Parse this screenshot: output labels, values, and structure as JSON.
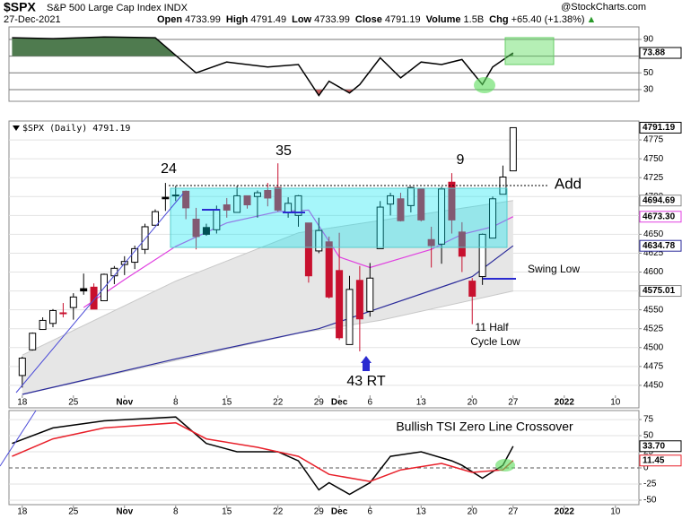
{
  "header": {
    "symbol": "$SPX",
    "name": "S&P 500 Large Cap Index INDX",
    "date": "27-Dec-2021",
    "source": "@StockCharts.com",
    "quote": [
      {
        "label": "Open",
        "value": "4733.99"
      },
      {
        "label": "High",
        "value": "4791.49"
      },
      {
        "label": "Low",
        "value": "4733.99"
      },
      {
        "label": "Close",
        "value": "4791.19"
      },
      {
        "label": "Volume",
        "value": "1.5B"
      },
      {
        "label": "Chg",
        "value": "+65.40 (+1.38%)"
      }
    ]
  },
  "chart_data": [
    {
      "type": "line",
      "xlim": [
        -1.3,
        60.3
      ],
      "ylim": [
        16,
        105
      ],
      "yticks": [
        30,
        50,
        70,
        90
      ],
      "grid": true,
      "fill_above": {
        "level": 70,
        "color": "#4f7b4f"
      },
      "fill_below": {
        "level": 30,
        "color": "#c46060"
      },
      "series": [
        {
          "color": "#000000",
          "x": [
            -1,
            3,
            8,
            13,
            17,
            20,
            24,
            27,
            29,
            30,
            32,
            33,
            35,
            37,
            39,
            41,
            43,
            45,
            46,
            48
          ],
          "values": [
            92,
            91,
            93,
            92,
            50,
            63,
            57,
            60,
            23,
            40,
            26,
            36,
            68,
            44,
            63,
            60,
            66,
            36,
            57,
            73.88
          ]
        }
      ]
    },
    {
      "type": "candlestick",
      "legend": "$SPX (Daily) 4791.19",
      "xlim": [
        -1.3,
        60.3
      ],
      "ylim": [
        4438,
        4800
      ],
      "yticks": [
        4450,
        4475,
        4500,
        4525,
        4550,
        4575,
        4600,
        4625,
        4650,
        4675,
        4700,
        4725,
        4750,
        4775
      ],
      "xticks": [
        {
          "value": 0,
          "label": "18"
        },
        {
          "value": 5,
          "label": "25"
        },
        {
          "value": 10,
          "label": "Nov"
        },
        {
          "value": 15,
          "label": "8"
        },
        {
          "value": 20,
          "label": "15"
        },
        {
          "value": 25,
          "label": "22"
        },
        {
          "value": 29,
          "label": "29"
        },
        {
          "value": 31,
          "label": "Dec"
        },
        {
          "value": 34,
          "label": "6"
        },
        {
          "value": 39,
          "label": "13"
        },
        {
          "value": 44,
          "label": "20"
        },
        {
          "value": 48,
          "label": "27"
        },
        {
          "value": 53,
          "label": "2022"
        },
        {
          "value": 58,
          "label": "10"
        }
      ],
      "grid": true,
      "up_color": "#000000",
      "down_color": "#c8102e",
      "x": [
        0,
        1,
        2,
        3,
        4,
        5,
        6,
        7,
        8,
        9,
        10,
        11,
        12,
        13,
        14,
        15,
        16,
        17,
        18,
        19,
        20,
        21,
        22,
        23,
        24,
        25,
        26,
        27,
        28,
        29,
        30,
        31,
        32,
        33,
        34,
        35,
        36,
        37,
        38,
        39,
        40,
        41,
        42,
        43,
        44,
        45,
        46,
        47,
        48
      ],
      "open": [
        4463,
        4497,
        4524,
        4532,
        4546,
        4553,
        4578,
        4580,
        4562,
        4595,
        4610,
        4613,
        4630,
        4662,
        4699,
        4701,
        4707,
        4670,
        4659,
        4656,
        4689,
        4679,
        4701,
        4700,
        4708,
        4712,
        4679,
        4675,
        4665,
        4628,
        4640,
        4602,
        4504,
        4589,
        4548,
        4631,
        4690,
        4697,
        4688,
        4710,
        4643,
        4637,
        4719,
        4653,
        4588,
        4594,
        4645,
        4703,
        4733.99
      ],
      "high": [
        4488,
        4520,
        4540,
        4551,
        4559,
        4572,
        4598,
        4585,
        4598,
        4608,
        4621,
        4635,
        4664,
        4683,
        4718,
        4714,
        4708,
        4685,
        4664,
        4688,
        4698,
        4714,
        4701,
        4708,
        4718,
        4744,
        4699,
        4702,
        4665,
        4672,
        4647,
        4652,
        4595,
        4608,
        4612,
        4694,
        4705,
        4705,
        4713,
        4710,
        4660,
        4713,
        4731,
        4666,
        4592,
        4651,
        4700,
        4741,
        4791.49
      ],
      "low": [
        4447,
        4496,
        4524,
        4527,
        4540,
        4537,
        4570,
        4551,
        4562,
        4584,
        4596,
        4604,
        4624,
        4662,
        4681,
        4694,
        4670,
        4630,
        4648,
        4651,
        4672,
        4679,
        4684,
        4672,
        4687,
        4680,
        4672,
        4660,
        4586,
        4625,
        4565,
        4510,
        4504,
        4495,
        4541,
        4631,
        4675,
        4667,
        4679,
        4667,
        4606,
        4611,
        4651,
        4600,
        4531,
        4583,
        4645,
        4703,
        4733.99
      ],
      "close": [
        4486,
        4519,
        4536,
        4549,
        4545,
        4567,
        4575,
        4551,
        4597,
        4605,
        4614,
        4631,
        4660,
        4680,
        4697,
        4702,
        4685,
        4647,
        4650,
        4683,
        4682,
        4701,
        4689,
        4705,
        4698,
        4682,
        4691,
        4701,
        4595,
        4655,
        4567,
        4513,
        4577,
        4538,
        4592,
        4686,
        4701,
        4668,
        4712,
        4669,
        4635,
        4710,
        4669,
        4621,
        4568,
        4650,
        4697,
        4725.79,
        4791.19
      ],
      "band": {
        "color": "#e6e6e6",
        "upper": {
          "x": [
            0,
            15,
            27,
            48
          ],
          "values": [
            4490,
            4588,
            4652,
            4694.69
          ]
        },
        "lower": {
          "x": [
            0,
            27,
            35,
            48
          ],
          "values": [
            4438,
            4519,
            4536,
            4575.01
          ]
        }
      },
      "overlays": [
        {
          "color": "#e040e0",
          "x": [
            6,
            10,
            15,
            20,
            25,
            28,
            31,
            34,
            37,
            40,
            43,
            46,
            48
          ],
          "values": [
            4553,
            4590,
            4634,
            4665,
            4680,
            4682,
            4620,
            4606,
            4618,
            4630,
            4650,
            4660,
            4673.3
          ],
          "value_labels": [
            null,
            null,
            null,
            null,
            null,
            null,
            null,
            null,
            null,
            null,
            null,
            null,
            "4673.30"
          ]
        },
        {
          "color": "#2a2a9a",
          "x": [
            0,
            15,
            29,
            34,
            44,
            48
          ],
          "values": [
            4438,
            4485,
            4525,
            4548,
            4594,
            4634.78
          ]
        }
      ],
      "annotations": [
        "24",
        "35",
        "9",
        "Add",
        "Swing Low",
        "11 Half",
        "Cycle Low",
        "43 RT"
      ]
    },
    {
      "type": "line",
      "xlim": [
        -1.3,
        60.3
      ],
      "ylim": [
        -57,
        89
      ],
      "yticks": [
        -50,
        -25,
        0,
        25,
        50,
        75
      ],
      "xticks": [
        {
          "value": 0,
          "label": "18"
        },
        {
          "value": 5,
          "label": "25"
        },
        {
          "value": 10,
          "label": "Nov"
        },
        {
          "value": 15,
          "label": "8"
        },
        {
          "value": 20,
          "label": "15"
        },
        {
          "value": 25,
          "label": "22"
        },
        {
          "value": 29,
          "label": "29"
        },
        {
          "value": 31,
          "label": "Dec"
        },
        {
          "value": 34,
          "label": "6"
        },
        {
          "value": 39,
          "label": "13"
        },
        {
          "value": 44,
          "label": "20"
        },
        {
          "value": 48,
          "label": "27"
        },
        {
          "value": 53,
          "label": "2022"
        },
        {
          "value": 58,
          "label": "10"
        }
      ],
      "grid": true,
      "series": [
        {
          "color": "#000000",
          "x": [
            -1,
            3,
            8,
            15,
            18,
            21,
            25,
            27,
            29,
            30,
            32,
            34,
            36,
            39,
            42,
            43,
            45,
            47,
            48
          ],
          "values": [
            38,
            62,
            73,
            79,
            38,
            25,
            25,
            11,
            -34,
            -23,
            -41,
            -23,
            18,
            25,
            11,
            4,
            -16,
            4,
            33.7
          ],
          "value_labels": [
            null,
            null,
            null,
            null,
            null,
            null,
            null,
            null,
            null,
            null,
            null,
            null,
            null,
            null,
            null,
            null,
            null,
            null,
            "33.70"
          ]
        },
        {
          "color": "#e8202a",
          "x": [
            -1,
            3,
            8,
            15,
            18,
            23,
            27,
            30,
            34,
            37,
            41,
            44,
            47,
            48
          ],
          "values": [
            18,
            45,
            62,
            70,
            45,
            32,
            18,
            -10,
            -21,
            -3,
            7,
            -7,
            -3,
            11.45
          ]
        }
      ],
      "annotations": [
        "Bullish TSI Zero Line Crossover"
      ]
    }
  ]
}
